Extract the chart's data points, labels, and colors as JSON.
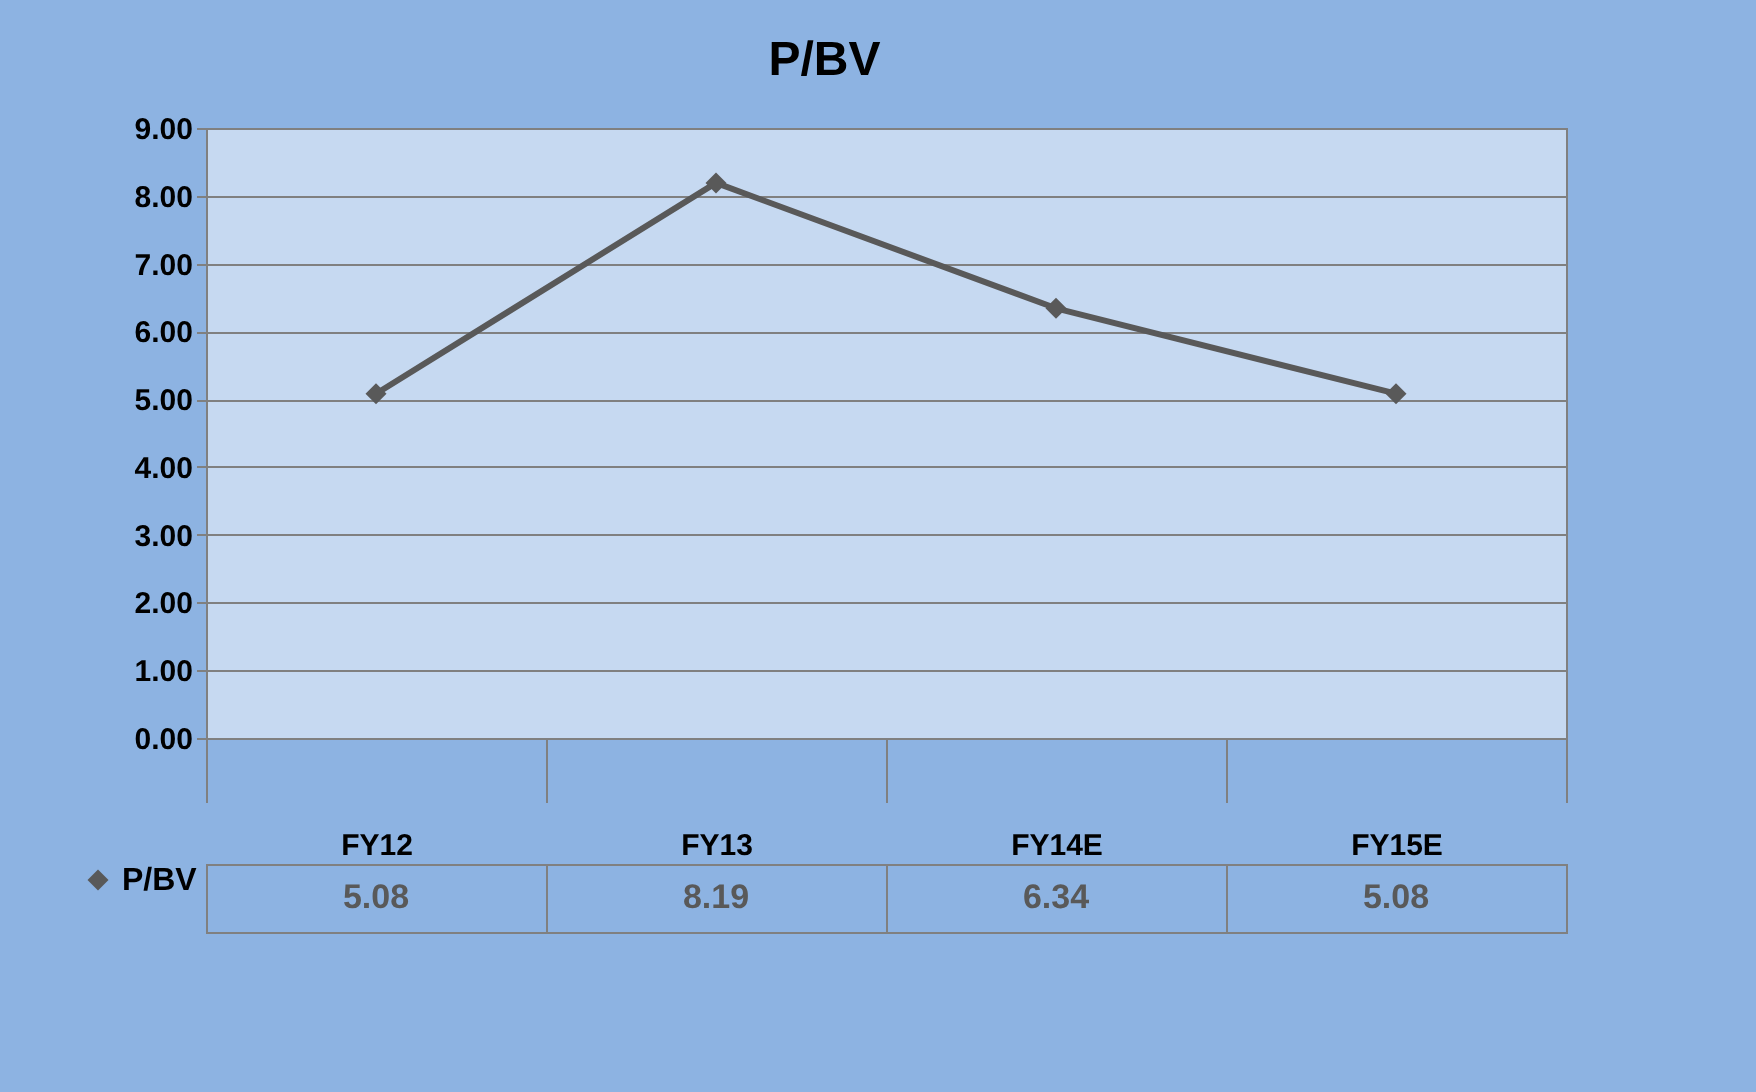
{
  "chart_data": {
    "type": "line",
    "title": "P/BV",
    "categories": [
      "FY12",
      "FY13",
      "FY14E",
      "FY15E"
    ],
    "series": [
      {
        "name": "P/BV",
        "color": "#595959",
        "values": [
          5.08,
          8.19,
          6.34,
          5.08
        ]
      }
    ],
    "ylim": [
      0,
      9
    ],
    "yticks": [
      {
        "value": 0,
        "label": "0.00"
      },
      {
        "value": 1,
        "label": "1.00"
      },
      {
        "value": 2,
        "label": "2.00"
      },
      {
        "value": 3,
        "label": "3.00"
      },
      {
        "value": 4,
        "label": "4.00"
      },
      {
        "value": 5,
        "label": "5.00"
      },
      {
        "value": 6,
        "label": "6.00"
      },
      {
        "value": 7,
        "label": "7.00"
      },
      {
        "value": 8,
        "label": "8.00"
      },
      {
        "value": 9,
        "label": "9.00"
      }
    ],
    "grid": "y",
    "marker": "diamond",
    "line_style": "solid",
    "data_labels": true,
    "legend": "bottom left"
  }
}
